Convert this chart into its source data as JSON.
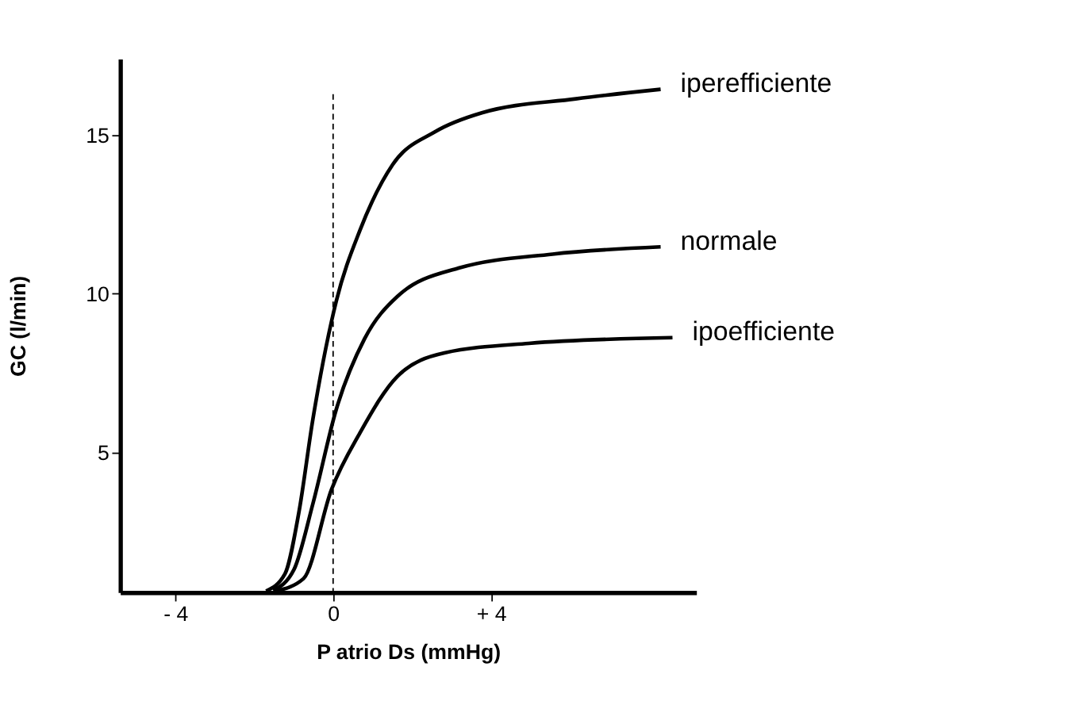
{
  "chart_data": {
    "type": "line",
    "xlabel": "P atrio Ds (mmHg)",
    "ylabel": "GC (l/min)",
    "xlim": [
      -5.4,
      9.2
    ],
    "xticks": [
      {
        "value": -4,
        "label": "- 4"
      },
      0,
      {
        "value": 4,
        "label": "+ 4"
      }
    ],
    "ylim": [
      0.6,
      17.4
    ],
    "yticks": [
      5,
      10,
      15
    ],
    "grid": false,
    "legend": false,
    "marker": "none",
    "line_style": "solid",
    "ref_lines": [
      {
        "axis": "x",
        "value": 0,
        "label": null,
        "color": "#000000",
        "line_style": "dashed"
      }
    ],
    "series": [
      {
        "name": "iperefficiente",
        "color": "#000000",
        "x": [
          -1.7,
          -1.22,
          -0.87,
          -0.51,
          0.08,
          0.68,
          1.51,
          2.58,
          3.77,
          6.15,
          8.3
        ],
        "values": [
          0.64,
          1.18,
          3.1,
          6.07,
          9.77,
          12.0,
          14.07,
          15.1,
          15.7,
          16.14,
          16.44
        ]
      },
      {
        "name": "normale",
        "color": "#000000",
        "x": [
          -1.52,
          -0.99,
          -0.51,
          0.08,
          0.8,
          1.63,
          3.18,
          5.56,
          8.3
        ],
        "values": [
          0.66,
          1.32,
          3.4,
          6.36,
          8.59,
          9.92,
          10.81,
          11.25,
          11.48
        ]
      },
      {
        "name": "ipoefficiente",
        "color": "#000000",
        "x": [
          -1.46,
          -0.75,
          -0.04,
          0.68,
          1.63,
          2.82,
          4.96,
          8.6
        ],
        "values": [
          0.64,
          1.03,
          3.84,
          5.62,
          7.4,
          8.14,
          8.44,
          8.62
        ]
      }
    ]
  }
}
